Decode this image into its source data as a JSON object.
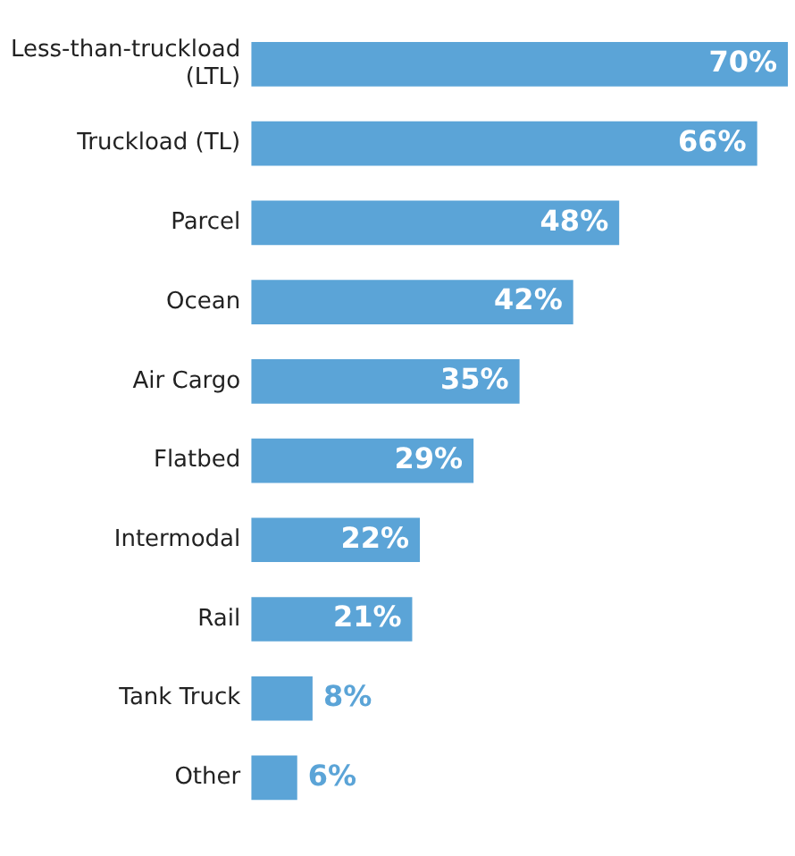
{
  "chart_data": {
    "type": "bar",
    "orientation": "horizontal",
    "categories": [
      "Less-than-truckload (LTL)",
      "Truckload (TL)",
      "Parcel",
      "Ocean",
      "Air Cargo",
      "Flatbed",
      "Intermodal",
      "Rail",
      "Tank Truck",
      "Other"
    ],
    "values": [
      70,
      66,
      48,
      42,
      35,
      29,
      22,
      21,
      8,
      6
    ],
    "value_labels": [
      "70%",
      "66%",
      "48%",
      "42%",
      "35%",
      "29%",
      "22%",
      "21%",
      "8%",
      "6%"
    ],
    "color": "#5ba4d7",
    "xlim": [
      0,
      70
    ],
    "tick_labels": "y",
    "grid": false,
    "legend": false
  }
}
